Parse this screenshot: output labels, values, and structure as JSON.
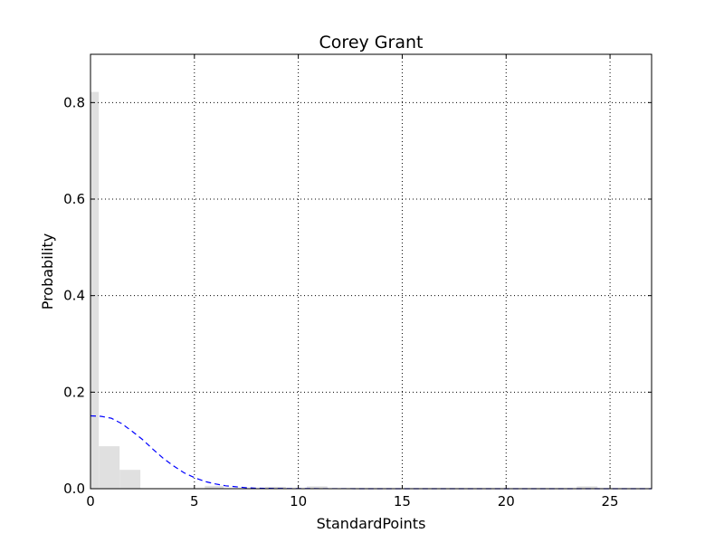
{
  "chart_data": {
    "type": "bar",
    "title": "Corey Grant",
    "xlabel": "StandardPoints",
    "ylabel": "Probability",
    "xlim": [
      0,
      27
    ],
    "ylim": [
      0,
      0.9
    ],
    "grid": true,
    "xticks": [
      0,
      5,
      10,
      15,
      20,
      25
    ],
    "yticks": [
      0.0,
      0.2,
      0.4,
      0.6,
      0.8
    ],
    "bar_color": "#e0e0e0",
    "line_color": "#0000ff",
    "histogram": [
      {
        "x0": 0.0,
        "x1": 0.4,
        "value": 0.822
      },
      {
        "x0": 0.4,
        "x1": 1.4,
        "value": 0.088
      },
      {
        "x0": 1.4,
        "x1": 2.4,
        "value": 0.039
      },
      {
        "x0": 5.5,
        "x1": 6.4,
        "value": 0.006
      },
      {
        "x0": 8.4,
        "x1": 9.4,
        "value": 0.004
      },
      {
        "x0": 10.4,
        "x1": 11.4,
        "value": 0.005
      },
      {
        "x0": 23.4,
        "x1": 24.4,
        "value": 0.005
      }
    ],
    "curve": {
      "type": "line",
      "style": "dashed",
      "x": [
        0,
        0.5,
        1,
        1.5,
        2,
        2.5,
        3,
        3.5,
        4,
        4.5,
        5,
        5.5,
        6,
        6.5,
        7,
        7.5,
        8,
        9,
        10,
        12,
        15,
        20,
        27
      ],
      "y": [
        0.151,
        0.15,
        0.146,
        0.135,
        0.119,
        0.102,
        0.082,
        0.063,
        0.047,
        0.033,
        0.023,
        0.015,
        0.01,
        0.006,
        0.004,
        0.002,
        0.001,
        0.0005,
        0.0002,
        0.0001,
        0.0,
        0.0,
        0.0
      ]
    }
  }
}
